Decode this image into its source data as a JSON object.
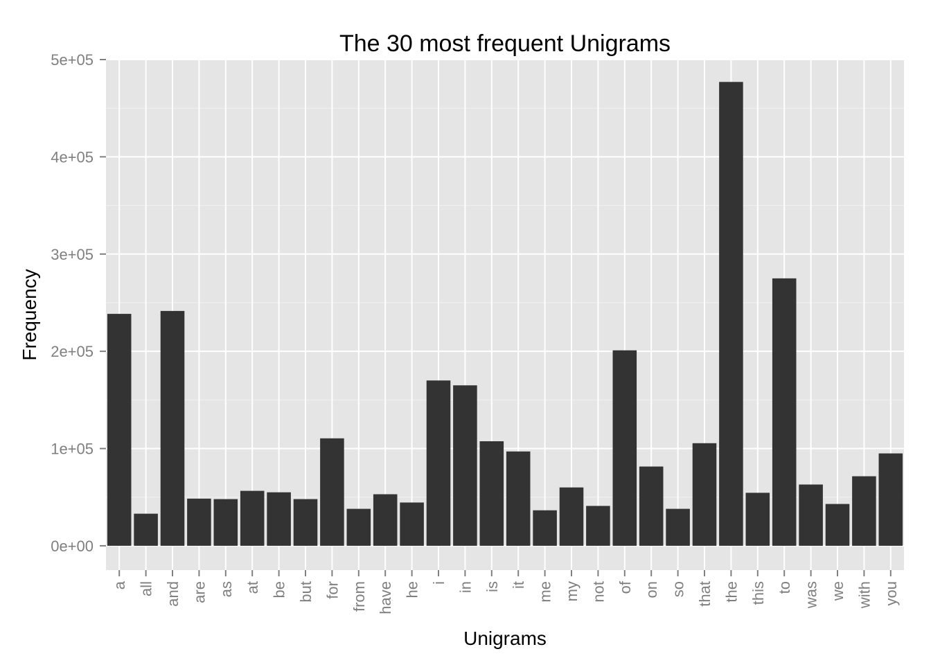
{
  "chart_data": {
    "type": "bar",
    "title": "The 30 most frequent Unigrams",
    "xlabel": "Unigrams",
    "ylabel": "Frequency",
    "ylim": [
      -25000,
      500000
    ],
    "yticks": [
      0,
      100000,
      200000,
      300000,
      400000,
      500000
    ],
    "ytick_labels": [
      "0e+00",
      "1e+05",
      "2e+05",
      "3e+05",
      "4e+05",
      "5e+05"
    ],
    "grid": true,
    "categories": [
      "a",
      "all",
      "and",
      "are",
      "as",
      "at",
      "be",
      "but",
      "for",
      "from",
      "have",
      "he",
      "i",
      "in",
      "is",
      "it",
      "me",
      "my",
      "not",
      "of",
      "on",
      "so",
      "that",
      "the",
      "this",
      "to",
      "was",
      "we",
      "with",
      "you"
    ],
    "values": [
      238500,
      33000,
      241500,
      48500,
      48000,
      56500,
      55000,
      48000,
      110500,
      38000,
      53000,
      44500,
      170000,
      165000,
      107500,
      97000,
      36500,
      60000,
      41000,
      201000,
      81500,
      38000,
      105500,
      477000,
      54500,
      275000,
      63000,
      43000,
      71500,
      95000
    ],
    "colors": {
      "bar": "#333333",
      "panel": "#e5e5e5",
      "grid_major": "#ffffff",
      "grid_minor": "#f2f2f2",
      "tick_text": "#7f7f7f"
    }
  }
}
